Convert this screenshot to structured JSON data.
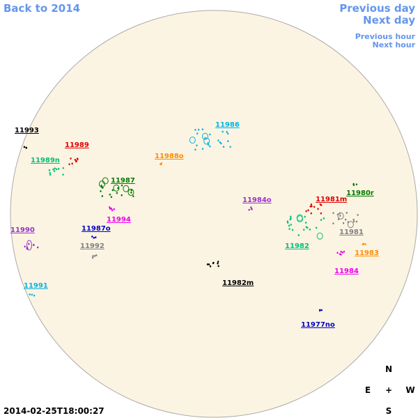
{
  "nav": {
    "back": "Back to 2014",
    "previous_day": "Previous day",
    "next_day": "Next day",
    "previous_hour": "Previous hour",
    "next_hour": "Next hour"
  },
  "regions": [
    {
      "label": "11993",
      "color": "#000000"
    },
    {
      "label": "11989",
      "color": "#dd0000"
    },
    {
      "label": "11989n",
      "color": "#00c07a"
    },
    {
      "label": "11988o",
      "color": "#ff8c00"
    },
    {
      "label": "11986",
      "color": "#00b4e6"
    },
    {
      "label": "11987",
      "color": "#007a00"
    },
    {
      "label": "11994",
      "color": "#ee00ee"
    },
    {
      "label": "11987o",
      "color": "#0000c8"
    },
    {
      "label": "11990",
      "color": "#9933cc"
    },
    {
      "label": "11992",
      "color": "#808080"
    },
    {
      "label": "11991",
      "color": "#00b4e6"
    },
    {
      "label": "11984o",
      "color": "#9933cc"
    },
    {
      "label": "11981m",
      "color": "#dd0000"
    },
    {
      "label": "11980r",
      "color": "#007a00"
    },
    {
      "label": "11981",
      "color": "#808080"
    },
    {
      "label": "11982",
      "color": "#00c07a"
    },
    {
      "label": "11983",
      "color": "#ff8c00"
    },
    {
      "label": "11984",
      "color": "#ee00ee"
    },
    {
      "label": "11982m",
      "color": "#000000"
    },
    {
      "label": "11977no",
      "color": "#0000c8"
    }
  ],
  "compass": {
    "north": "N",
    "east": "E",
    "center": "+",
    "west": "W",
    "south": "S"
  },
  "timestamp": "2014-02-25T18:00:27"
}
